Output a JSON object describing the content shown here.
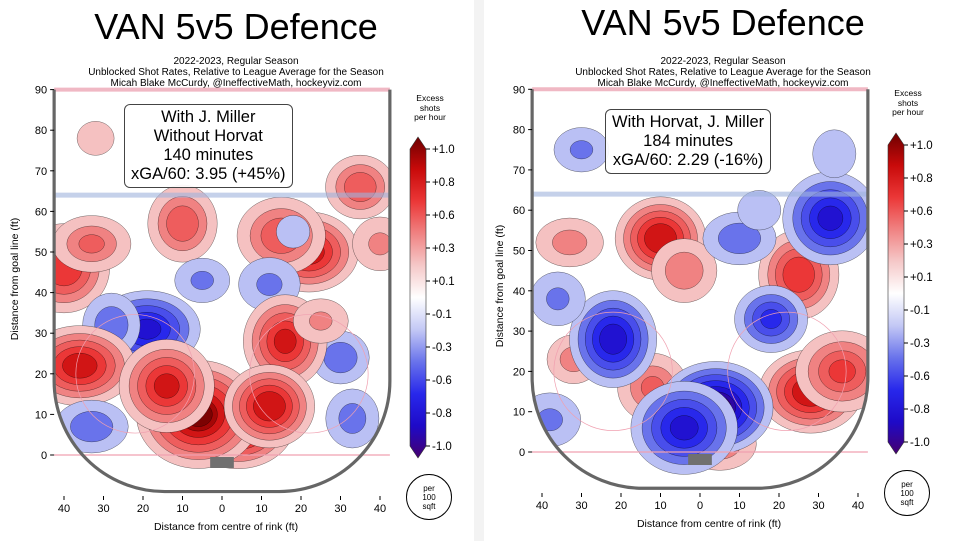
{
  "chart_data": [
    {
      "type": "heatmap",
      "title": "VAN 5v5 Defence",
      "subtitle": [
        "2022-2023, Regular Season",
        "Unblocked Shot Rates, Relative to League Average for the Season",
        "Micah Blake McCurdy, @IneffectiveMath, hockeyviz.com"
      ],
      "info": [
        "With J. Miller",
        "Without Horvat",
        "140 minutes",
        "xGA/60: 3.95 (+45%)"
      ],
      "xlabel": "Distance from centre of rink (ft)",
      "ylabel": "Distance from goal line (ft)",
      "xticks": [
        "40",
        "30",
        "20",
        "10",
        "0",
        "10",
        "20",
        "30",
        "40"
      ],
      "yticks": [
        "0",
        "10",
        "20",
        "30",
        "40",
        "50",
        "60",
        "70",
        "80",
        "90"
      ],
      "xlim": [
        -42.5,
        42.5
      ],
      "ylim": [
        0,
        90
      ],
      "colorbar": {
        "title": [
          "Excess",
          "shots",
          "per hour"
        ],
        "ticks": [
          "+1.0",
          "+0.8",
          "+0.6",
          "+0.3",
          "+0.1",
          "-0.1",
          "-0.3",
          "-0.6",
          "-0.8",
          "-1.0"
        ],
        "range": [
          -1.0,
          1.0
        ]
      },
      "unit_note": [
        "per",
        "100",
        "sqft"
      ],
      "hotspots": [
        {
          "x": -32,
          "y": 78,
          "w": 0.2
        },
        {
          "x": -40,
          "y": 46,
          "w": 0.7
        },
        {
          "x": -33,
          "y": 52,
          "w": 0.45
        },
        {
          "x": -10,
          "y": 57,
          "w": 0.55
        },
        {
          "x": 22,
          "y": 50,
          "w": 0.8
        },
        {
          "x": 15,
          "y": 54,
          "w": 0.55
        },
        {
          "x": 35,
          "y": 66,
          "w": 0.55
        },
        {
          "x": 40,
          "y": 52,
          "w": 0.3
        },
        {
          "x": -19,
          "y": 31,
          "w": -0.75
        },
        {
          "x": -28,
          "y": 32,
          "w": -0.4
        },
        {
          "x": -5,
          "y": 43,
          "w": -0.3
        },
        {
          "x": 12,
          "y": 42,
          "w": -0.3
        },
        {
          "x": 30,
          "y": 24,
          "w": -0.4
        },
        {
          "x": 18,
          "y": 55,
          "w": -0.15
        },
        {
          "x": -36,
          "y": 22,
          "w": 0.8
        },
        {
          "x": 16,
          "y": 28,
          "w": 0.75
        },
        {
          "x": 4,
          "y": 8,
          "w": 1.0
        },
        {
          "x": -6,
          "y": 10,
          "w": 0.95
        },
        {
          "x": 12,
          "y": 12,
          "w": 0.85
        },
        {
          "x": -14,
          "y": 17,
          "w": 0.75
        },
        {
          "x": -33,
          "y": 7,
          "w": -0.4
        },
        {
          "x": 33,
          "y": 9,
          "w": -0.35
        },
        {
          "x": 25,
          "y": 33,
          "w": 0.3
        }
      ]
    },
    {
      "type": "heatmap",
      "title": "VAN 5v5 Defence",
      "subtitle": [
        "2022-2023, Regular Season",
        "Unblocked Shot Rates, Relative to League Average for the Season",
        "Micah Blake McCurdy, @IneffectiveMath, hockeyviz.com"
      ],
      "info": [
        "With Horvat, J. Miller",
        "184 minutes",
        "xGA/60: 2.29 (-16%)"
      ],
      "xlabel": "Distance from centre of rink (ft)",
      "ylabel": "Distance from goal line (ft)",
      "xticks": [
        "40",
        "30",
        "20",
        "10",
        "0",
        "10",
        "20",
        "30",
        "40"
      ],
      "yticks": [
        "0",
        "10",
        "20",
        "30",
        "40",
        "50",
        "60",
        "70",
        "80",
        "90"
      ],
      "xlim": [
        -42.5,
        42.5
      ],
      "ylim": [
        0,
        90
      ],
      "colorbar": {
        "title": [
          "Excess",
          "shots",
          "per hour"
        ],
        "ticks": [
          "+1.0",
          "+0.8",
          "+0.6",
          "+0.3",
          "+0.1",
          "-0.1",
          "-0.3",
          "-0.6",
          "-0.8",
          "-1.0"
        ],
        "range": [
          -1.0,
          1.0
        ]
      },
      "unit_note": [
        "per",
        "100",
        "sqft"
      ],
      "hotspots": [
        {
          "x": -10,
          "y": 53,
          "w": 0.85
        },
        {
          "x": -4,
          "y": 45,
          "w": 0.4
        },
        {
          "x": -33,
          "y": 52,
          "w": 0.35
        },
        {
          "x": 25,
          "y": 44,
          "w": 0.7
        },
        {
          "x": 28,
          "y": 15,
          "w": 0.85
        },
        {
          "x": 36,
          "y": 20,
          "w": 0.6
        },
        {
          "x": -32,
          "y": 23,
          "w": 0.35
        },
        {
          "x": -12,
          "y": 16,
          "w": 0.45
        },
        {
          "x": 5,
          "y": 2,
          "w": 0.4
        },
        {
          "x": -22,
          "y": 28,
          "w": -0.8
        },
        {
          "x": 4,
          "y": 11,
          "w": -1.0
        },
        {
          "x": -4,
          "y": 6,
          "w": -0.75
        },
        {
          "x": 18,
          "y": 33,
          "w": -0.6
        },
        {
          "x": 33,
          "y": 58,
          "w": -0.75
        },
        {
          "x": 10,
          "y": 53,
          "w": -0.4
        },
        {
          "x": 34,
          "y": 74,
          "w": -0.25
        },
        {
          "x": -30,
          "y": 75,
          "w": -0.3
        },
        {
          "x": -38,
          "y": 8,
          "w": -0.3
        },
        {
          "x": 15,
          "y": 60,
          "w": -0.25
        },
        {
          "x": -36,
          "y": 38,
          "w": -0.3
        }
      ]
    }
  ]
}
